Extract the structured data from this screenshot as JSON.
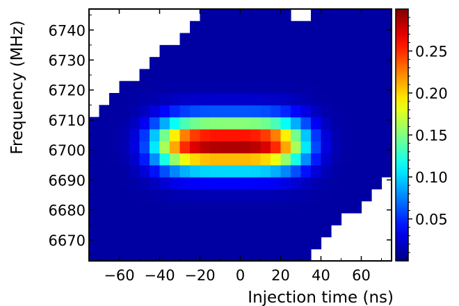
{
  "chart_data": {
    "type": "heatmap",
    "title": "",
    "xlabel": "Injection time (ns)",
    "ylabel": "Frequency (MHz)",
    "x_ticks": [
      -60,
      -40,
      -20,
      0,
      20,
      40,
      60
    ],
    "y_ticks": [
      6670,
      6680,
      6690,
      6700,
      6710,
      6720,
      6730,
      6740
    ],
    "xlim": [
      -75,
      75
    ],
    "ylim": [
      6663,
      6747
    ],
    "x_bins": {
      "start": -75,
      "width": 5,
      "count": 30
    },
    "y_bins": {
      "start": 6663,
      "width": 4,
      "count": 21
    },
    "colorbar": {
      "colormap": "jet",
      "range": [
        0,
        0.3
      ],
      "ticks": [
        0.05,
        0.1,
        0.15,
        0.2,
        0.25
      ],
      "tick_labels": [
        "0.05",
        "0.10",
        "0.15",
        "0.20",
        "0.25"
      ]
    },
    "peak": {
      "injection_time_ns": -5,
      "frequency_mhz": 6702,
      "value": 0.29
    },
    "background_value": 0.01,
    "no_data_regions": [
      "upper-left corner above a staircase rising from (-75 ns, 6711 MHz) to (-15 ns, 6747 MHz)",
      "top edge cells near 25-35 ns at 6745 MHz",
      "lower-right corner below a staircase from (30 ns, 6663 MHz) to (60 ns, 6682 MHz)"
    ]
  }
}
